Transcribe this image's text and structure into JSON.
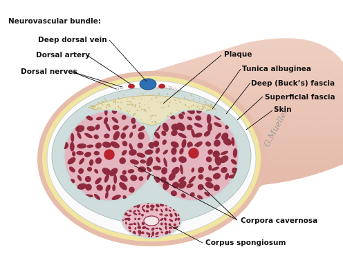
{
  "diagram": {
    "heading": "Neurovascular bundle:",
    "labels": {
      "deep_dorsal_vein": "Deep dorsal vein",
      "dorsal_artery": "Dorsal artery",
      "dorsal_nerves": "Dorsal nerves",
      "plaque": "Plaque",
      "tunica_albuginea": "Tunica albuginea",
      "deep_bucks_fascia": "Deep (Buck’s) fascia",
      "superficial_fascia": "Superficial fascia",
      "skin": "Skin",
      "corpora_cavernosa": "Corpora cavernosa",
      "corpus_spongiosum": "Corpus spongiosum"
    },
    "signature": "G.Mueller",
    "colors": {
      "skin": "#ebc7b8",
      "skin_shadow": "#d9ab9a",
      "superficial_fascia": "#f1e6a0",
      "bucks_fascia": "#fafafa",
      "tunica": "#cfdedd",
      "tissue_bg": "#e4b4bf",
      "sinusoid": "#8e2a3e",
      "plaque": "#e9e3bf",
      "vein": "#2f6fb3",
      "artery": "#b7242d"
    }
  }
}
